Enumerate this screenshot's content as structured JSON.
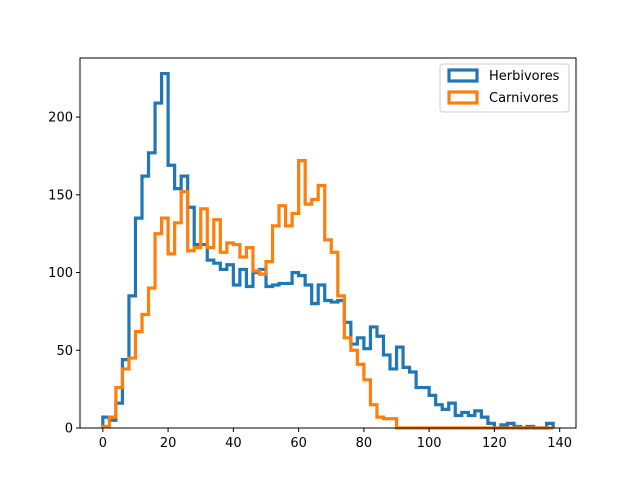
{
  "chart_data": {
    "type": "histogram-step",
    "title": "",
    "xlabel": "",
    "ylabel": "",
    "xlim": [
      -7,
      145
    ],
    "ylim": [
      0,
      238
    ],
    "grid": false,
    "legend_placement": "upper-right",
    "x_ticks": [
      0,
      20,
      40,
      60,
      80,
      100,
      120,
      140
    ],
    "y_ticks": [
      0,
      50,
      100,
      150,
      200
    ],
    "series": [
      {
        "name": "Herbivores",
        "color": "#1f77b4",
        "start": 0,
        "bin_width": 2,
        "counts": [
          7,
          5,
          16,
          44,
          85,
          135,
          162,
          177,
          209,
          228,
          169,
          154,
          162,
          142,
          118,
          118,
          108,
          106,
          102,
          105,
          92,
          102,
          91,
          100,
          102,
          91,
          92,
          93,
          93,
          100,
          98,
          92,
          80,
          92,
          82,
          81,
          82,
          68,
          54,
          58,
          51,
          65,
          59,
          47,
          38,
          52,
          39,
          36,
          26,
          26,
          21,
          15,
          12,
          16,
          8,
          10,
          8,
          11,
          7,
          3,
          0,
          2,
          3,
          1,
          0,
          1,
          0,
          0,
          3
        ]
      },
      {
        "name": "Carnivores",
        "color": "#ff7f0e",
        "start": 0,
        "bin_width": 2,
        "counts": [
          1,
          7,
          26,
          38,
          45,
          62,
          73,
          90,
          125,
          135,
          112,
          132,
          152,
          114,
          116,
          141,
          116,
          134,
          113,
          119,
          118,
          110,
          116,
          101,
          99,
          107,
          130,
          143,
          130,
          138,
          172,
          144,
          147,
          156,
          121,
          113,
          85,
          58,
          50,
          41,
          31,
          15,
          7,
          6,
          6,
          0,
          0,
          0,
          0,
          0,
          0,
          0,
          0,
          0,
          0,
          0,
          0,
          0,
          0,
          0,
          0,
          0,
          0,
          0,
          0,
          0,
          0,
          0,
          0
        ]
      }
    ]
  }
}
